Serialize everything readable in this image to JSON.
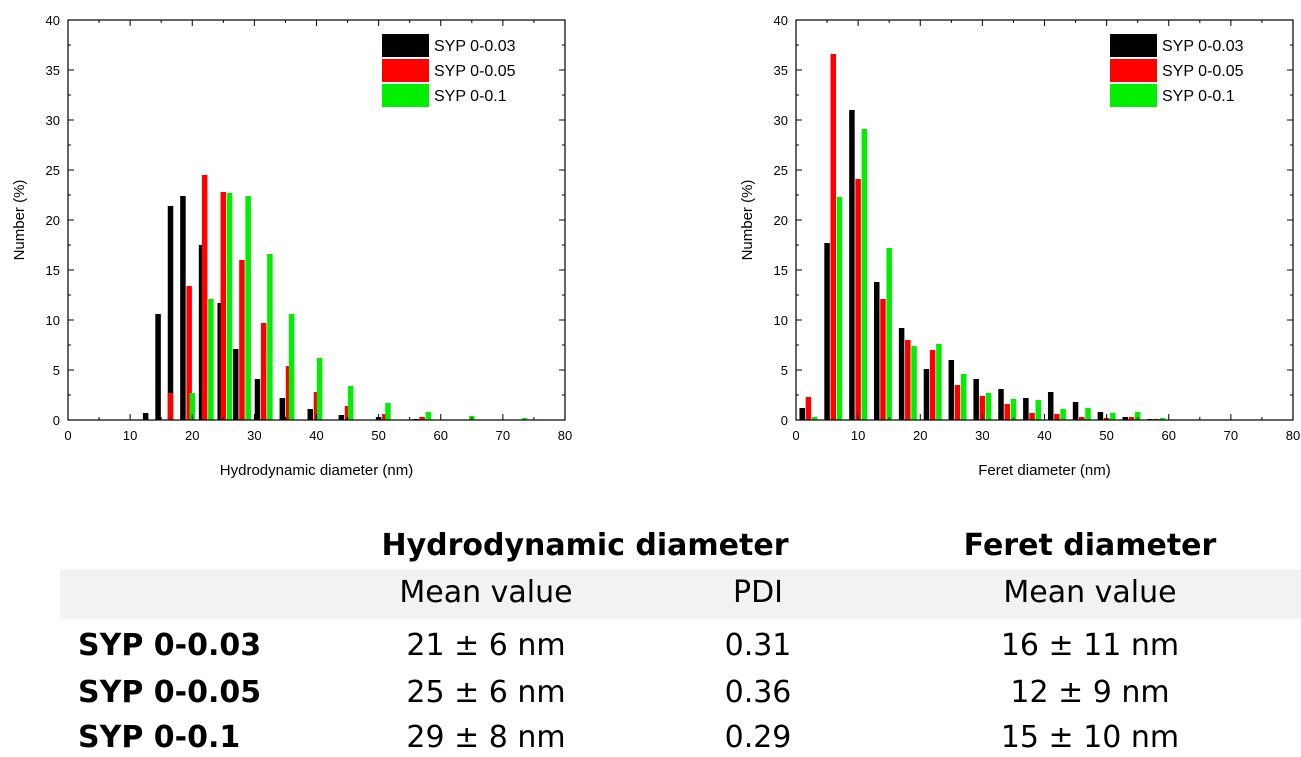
{
  "chart_data": [
    {
      "type": "bar",
      "title": "",
      "xlabel": "Hydrodynamic diameter (nm)",
      "ylabel": "Number (%)",
      "xlim": [
        0,
        80
      ],
      "ylim": [
        0,
        40
      ],
      "x_ticks": [
        0,
        10,
        20,
        30,
        40,
        50,
        60,
        70,
        80
      ],
      "y_ticks": [
        0,
        5,
        10,
        15,
        20,
        25,
        30,
        35,
        40
      ],
      "legend_position": "top-right",
      "grid": false,
      "series": [
        {
          "name": "SYP 0-0.03",
          "color": "#000000",
          "x": [
            12.5,
            14.5,
            16.5,
            18.5,
            21.5,
            24.5,
            27,
            30.5,
            34.5,
            39,
            44,
            50,
            56
          ],
          "values": [
            0.7,
            10.6,
            21.4,
            22.4,
            17.5,
            11.7,
            7.1,
            4.1,
            2.2,
            1.1,
            0.5,
            0.3,
            0.1
          ]
        },
        {
          "name": "SYP 0-0.05",
          "color": "#ff0000",
          "x": [
            16.5,
            19.5,
            22,
            25,
            28,
            31.5,
            35.5,
            40,
            45,
            51,
            57
          ],
          "values": [
            2.7,
            13.4,
            24.5,
            22.8,
            16.0,
            9.7,
            5.4,
            2.8,
            1.4,
            0.6,
            0.3
          ]
        },
        {
          "name": "SYP 0-0.1",
          "color": "#00ee00",
          "x": [
            20,
            23,
            26,
            29,
            32.5,
            36,
            40.5,
            45.5,
            51.5,
            58,
            65,
            73.5
          ],
          "values": [
            2.7,
            12.1,
            22.7,
            22.4,
            16.6,
            10.6,
            6.2,
            3.4,
            1.7,
            0.8,
            0.4,
            0.2
          ]
        }
      ]
    },
    {
      "type": "bar",
      "title": "",
      "xlabel": "Feret diameter (nm)",
      "ylabel": "Number (%)",
      "xlim": [
        0,
        80
      ],
      "ylim": [
        0,
        40
      ],
      "x_ticks": [
        0,
        10,
        20,
        30,
        40,
        50,
        60,
        70,
        80
      ],
      "y_ticks": [
        0,
        5,
        10,
        15,
        20,
        25,
        30,
        35,
        40
      ],
      "legend_position": "top-right",
      "grid": false,
      "series": [
        {
          "name": "SYP 0-0.03",
          "color": "#000000",
          "x": [
            1,
            5,
            9,
            13,
            17,
            21,
            25,
            29,
            33,
            37,
            41,
            45,
            49,
            53,
            57
          ],
          "values": [
            1.2,
            17.7,
            31.0,
            13.8,
            9.2,
            5.1,
            6.0,
            4.1,
            3.1,
            2.2,
            2.8,
            1.8,
            0.8,
            0.3,
            0.1
          ]
        },
        {
          "name": "SYP 0-0.05",
          "color": "#ff0000",
          "x": [
            2,
            6,
            10,
            14,
            18,
            22,
            26,
            30,
            34,
            38,
            42,
            46,
            50,
            54,
            58
          ],
          "values": [
            2.3,
            36.6,
            24.1,
            12.1,
            8.0,
            7.0,
            3.5,
            2.4,
            1.6,
            0.7,
            0.6,
            0.3,
            0.2,
            0.3,
            0.1
          ]
        },
        {
          "name": "SYP 0-0.1",
          "color": "#00ee00",
          "x": [
            3,
            7,
            11,
            15,
            19,
            23,
            27,
            31,
            35,
            39,
            43,
            47,
            51,
            55,
            59
          ],
          "values": [
            0.3,
            22.3,
            29.1,
            17.2,
            7.4,
            7.6,
            4.6,
            2.7,
            2.1,
            2.0,
            1.1,
            1.2,
            0.7,
            0.8,
            0.2
          ]
        }
      ]
    }
  ],
  "summary": {
    "hydro_header": "Hydrodynamic diameter",
    "feret_header": "Feret diameter",
    "col_mean": "Mean value",
    "col_pdi": "PDI",
    "col_feret_mean": "Mean value",
    "rows": [
      {
        "label": "SYP 0-0.03",
        "hydro_mean": "21 ± 6 nm",
        "pdi": "0.31",
        "feret_mean": "16 ± 11 nm"
      },
      {
        "label": "SYP 0-0.05",
        "hydro_mean": "25 ± 6 nm",
        "pdi": "0.36",
        "feret_mean": "12 ± 9 nm"
      },
      {
        "label": "SYP 0-0.1",
        "hydro_mean": "29 ± 8 nm",
        "pdi": "0.29",
        "feret_mean": "15 ± 10 nm"
      }
    ]
  }
}
